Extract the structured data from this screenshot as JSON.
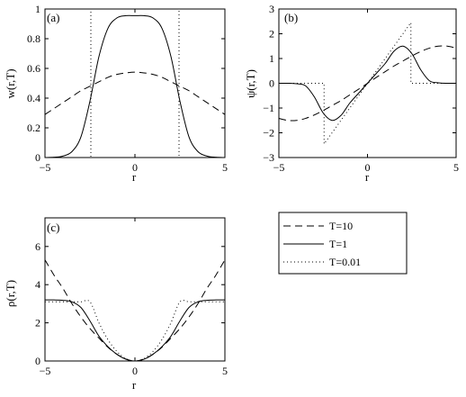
{
  "legend": {
    "entries": [
      {
        "label": "T=10",
        "style": "dashed"
      },
      {
        "label": "T=1",
        "style": "solid"
      },
      {
        "label": "T=0.01",
        "style": "dotted"
      }
    ]
  },
  "chart_data": [
    {
      "type": "line",
      "panel_label": "(a)",
      "xlabel": "r",
      "ylabel": "w(r,T)",
      "xlim": [
        -5,
        5
      ],
      "ylim": [
        0,
        1
      ],
      "xticks": [
        -5,
        0,
        5
      ],
      "yticks": [
        0,
        0.2,
        0.4,
        0.6,
        0.8,
        1
      ],
      "ytick_labels": [
        "0",
        "0.2",
        "0.4",
        "0.6",
        "0.8",
        "1"
      ],
      "grid": false,
      "x": [
        -5,
        -4.5,
        -4,
        -3.5,
        -3,
        -2.5,
        -2,
        -1.5,
        -1,
        -0.5,
        0,
        0.5,
        1,
        1.5,
        2,
        2.5,
        3,
        3.5,
        4,
        4.5,
        5
      ],
      "series": [
        {
          "legend": "T=10",
          "style": "dashed",
          "values": [
            0.29,
            0.33,
            0.37,
            0.41,
            0.45,
            0.48,
            0.51,
            0.54,
            0.56,
            0.57,
            0.575,
            0.57,
            0.56,
            0.54,
            0.51,
            0.48,
            0.45,
            0.41,
            0.37,
            0.33,
            0.29
          ]
        },
        {
          "legend": "T=1",
          "style": "solid",
          "values": [
            0.0,
            0.002,
            0.01,
            0.04,
            0.14,
            0.38,
            0.68,
            0.87,
            0.94,
            0.955,
            0.955,
            0.955,
            0.94,
            0.87,
            0.68,
            0.38,
            0.14,
            0.04,
            0.01,
            0.002,
            0.0
          ]
        },
        {
          "legend": "T=0.01",
          "style": "dotted",
          "x": [
            -5,
            -2.45,
            -2.45,
            2.45,
            2.45,
            5
          ],
          "values": [
            0,
            0,
            1,
            1,
            0,
            0
          ]
        }
      ]
    },
    {
      "type": "line",
      "panel_label": "(b)",
      "xlabel": "r",
      "ylabel": "ψ(r,T)",
      "xlim": [
        -5,
        5
      ],
      "ylim": [
        -3,
        3
      ],
      "xticks": [
        -5,
        0,
        5
      ],
      "yticks": [
        -3,
        -2,
        -1,
        0,
        1,
        2,
        3
      ],
      "ytick_labels": [
        "−3",
        "−2",
        "−1",
        "0",
        "1",
        "2",
        "3"
      ],
      "grid": false,
      "x": [
        -5,
        -4.5,
        -4,
        -3.5,
        -3,
        -2.5,
        -2,
        -1.5,
        -1,
        -0.5,
        0,
        0.5,
        1,
        1.5,
        2,
        2.5,
        3,
        3.5,
        4,
        4.5,
        5
      ],
      "series": [
        {
          "legend": "T=10",
          "style": "dashed",
          "values": [
            -1.42,
            -1.5,
            -1.5,
            -1.42,
            -1.28,
            -1.1,
            -0.9,
            -0.7,
            -0.47,
            -0.24,
            0,
            0.24,
            0.47,
            0.7,
            0.9,
            1.1,
            1.28,
            1.42,
            1.5,
            1.5,
            1.42
          ]
        },
        {
          "legend": "T=1",
          "style": "solid",
          "values": [
            0,
            0,
            -0.02,
            -0.1,
            -0.55,
            -1.2,
            -1.5,
            -1.3,
            -0.8,
            -0.4,
            0,
            0.4,
            0.8,
            1.3,
            1.5,
            1.2,
            0.55,
            0.1,
            0.02,
            0,
            0
          ]
        },
        {
          "legend": "T=0.01",
          "style": "dotted",
          "x": [
            -5,
            -2.45,
            -2.45,
            2.45,
            2.45,
            5
          ],
          "values": [
            0,
            0,
            -2.45,
            2.45,
            0,
            0
          ]
        }
      ]
    },
    {
      "type": "line",
      "panel_label": "(c)",
      "xlabel": "r",
      "ylabel": "ρ(r,T)",
      "xlim": [
        -5,
        5
      ],
      "ylim": [
        0,
        7.5
      ],
      "xticks": [
        -5,
        0,
        5
      ],
      "yticks": [
        0,
        2,
        4,
        6
      ],
      "ytick_labels": [
        "0",
        "2",
        "4",
        "6"
      ],
      "grid": false,
      "x": [
        -5,
        -4.5,
        -4,
        -3.5,
        -3,
        -2.5,
        -2,
        -1.5,
        -1,
        -0.5,
        0,
        0.5,
        1,
        1.5,
        2,
        2.5,
        3,
        3.5,
        4,
        4.5,
        5
      ],
      "series": [
        {
          "legend": "T=10",
          "style": "dashed",
          "values": [
            5.3,
            4.5,
            3.8,
            3.0,
            2.3,
            1.7,
            1.2,
            0.72,
            0.35,
            0.1,
            0,
            0.1,
            0.35,
            0.72,
            1.2,
            1.7,
            2.3,
            3.0,
            3.8,
            4.5,
            5.3
          ]
        },
        {
          "legend": "T=1",
          "style": "solid",
          "values": [
            3.2,
            3.2,
            3.18,
            3.1,
            2.8,
            2.1,
            1.3,
            0.75,
            0.35,
            0.09,
            0,
            0.09,
            0.35,
            0.75,
            1.3,
            2.1,
            2.8,
            3.1,
            3.18,
            3.2,
            3.2
          ]
        },
        {
          "legend": "T=0.01",
          "style": "dotted",
          "values": [
            3.1,
            3.1,
            3.1,
            3.1,
            3.1,
            3.1,
            2.0,
            1.12,
            0.5,
            0.125,
            0,
            0.125,
            0.5,
            1.12,
            2.0,
            3.1,
            3.1,
            3.1,
            3.1,
            3.1,
            3.1
          ]
        }
      ]
    }
  ]
}
